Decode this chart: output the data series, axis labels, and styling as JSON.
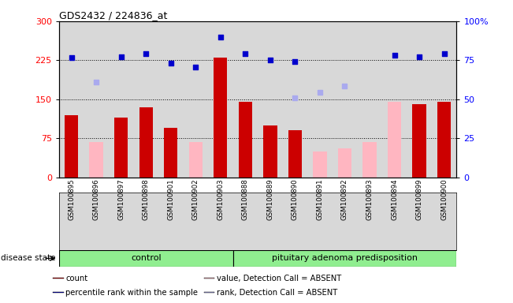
{
  "title": "GDS2432 / 224836_at",
  "samples": [
    "GSM100895",
    "GSM100896",
    "GSM100897",
    "GSM100898",
    "GSM100901",
    "GSM100902",
    "GSM100903",
    "GSM100888",
    "GSM100889",
    "GSM100890",
    "GSM100891",
    "GSM100892",
    "GSM100893",
    "GSM100894",
    "GSM100899",
    "GSM100900"
  ],
  "n_control": 7,
  "n_pituitary": 9,
  "bar_values": [
    120,
    null,
    115,
    135,
    95,
    null,
    230,
    145,
    100,
    90,
    null,
    null,
    null,
    null,
    140,
    145
  ],
  "bar_absent_values": [
    null,
    68,
    null,
    null,
    null,
    68,
    null,
    null,
    null,
    null,
    50,
    55,
    68,
    145,
    null,
    null
  ],
  "scatter_present_y": [
    230,
    null,
    232,
    238,
    220,
    212,
    270,
    237,
    225,
    222,
    null,
    null,
    null,
    235,
    232,
    237
  ],
  "scatter_absent_y": [
    null,
    183,
    null,
    null,
    null,
    null,
    null,
    null,
    null,
    153,
    163,
    175,
    null,
    null,
    null,
    null
  ],
  "bar_present_color": "#CC0000",
  "bar_absent_color": "#FFB6C1",
  "scatter_present_color": "#0000CC",
  "scatter_absent_color": "#AAAAEE",
  "group_color": "#90EE90",
  "plot_bg_color": "#D8D8D8",
  "ylim_left": [
    0,
    300
  ],
  "ylim_right": [
    0,
    100
  ],
  "yticks_left": [
    0,
    75,
    150,
    225,
    300
  ],
  "yticks_right": [
    0,
    25,
    50,
    75,
    100
  ],
  "hlines": [
    75,
    150,
    225
  ],
  "disease_state_label": "disease state",
  "group_labels": [
    "control",
    "pituitary adenoma predisposition"
  ],
  "legend_items": [
    {
      "label": "count",
      "color": "#CC0000"
    },
    {
      "label": "percentile rank within the sample",
      "color": "#0000CC"
    },
    {
      "label": "value, Detection Call = ABSENT",
      "color": "#FFB6C1"
    },
    {
      "label": "rank, Detection Call = ABSENT",
      "color": "#AAAAEE"
    }
  ]
}
